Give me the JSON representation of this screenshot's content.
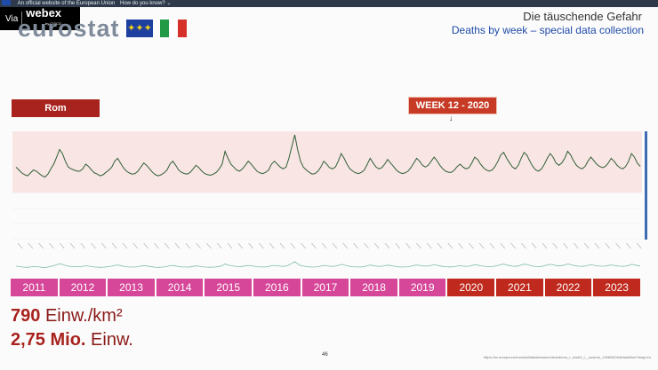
{
  "browser_bar": {
    "text": "An official website of the European Union",
    "link": "How do you know? ⌄"
  },
  "webex": {
    "via": "Via",
    "brand": "webex",
    "sub": "by CISCO"
  },
  "slide": {
    "logo": "eurostat",
    "title": "Die täuschende Gefahr",
    "subtitle": "Deaths by week – special data collection",
    "city_label": "Rom",
    "week_label": "WEEK 12 - 2020",
    "week_arrow": "↓",
    "years": [
      {
        "label": "2011",
        "color": "#d6479a"
      },
      {
        "label": "2012",
        "color": "#d6479a"
      },
      {
        "label": "2013",
        "color": "#d6479a"
      },
      {
        "label": "2014",
        "color": "#d6479a"
      },
      {
        "label": "2015",
        "color": "#d6479a"
      },
      {
        "label": "2016",
        "color": "#d6479a"
      },
      {
        "label": "2017",
        "color": "#d6479a"
      },
      {
        "label": "2018",
        "color": "#d6479a"
      },
      {
        "label": "2019",
        "color": "#d6479a"
      },
      {
        "label": "2020",
        "color": "#c0291d"
      },
      {
        "label": "2021",
        "color": "#c0291d"
      },
      {
        "label": "2022",
        "color": "#c0291d"
      },
      {
        "label": "2023",
        "color": "#c0291d"
      }
    ],
    "density_value": "790",
    "density_unit": "Einw./km²",
    "population_value": "2,75 Mio.",
    "population_unit": "Einw.",
    "page_number": "46",
    "source_url": "https://ec.europa.eu/eurostat/databrowser/view/demo_r_mwk3_t__custom_13080824/default/line?lang=en"
  },
  "colors": {
    "band": "#f9e5e3",
    "line": "#2f5f38",
    "accent_red": "#a8221e",
    "eu_blue": "#1d3fa0",
    "it_green": "#229a46",
    "it_white": "#ffffff",
    "it_red": "#d5312a"
  },
  "chart_data": {
    "type": "line",
    "title": "",
    "xlabel": "",
    "ylabel": "",
    "x_start_year": 2011,
    "x_end_year": 2023,
    "note": "Weekly deaths, Rome (values estimated; axis labels not legible)",
    "series": [
      {
        "values": [
          0.45,
          0.4,
          0.35,
          0.32,
          0.3,
          0.35,
          0.4,
          0.38,
          0.34,
          0.3,
          0.28,
          0.33,
          0.42,
          0.5,
          0.62,
          0.75,
          0.68,
          0.55,
          0.45,
          0.42,
          0.4,
          0.38,
          0.38,
          0.42,
          0.5,
          0.46,
          0.4,
          0.35,
          0.33,
          0.3,
          0.32,
          0.36,
          0.4,
          0.45,
          0.55,
          0.6,
          0.52,
          0.44,
          0.38,
          0.35,
          0.33,
          0.34,
          0.38,
          0.45,
          0.52,
          0.48,
          0.42,
          0.36,
          0.32,
          0.3,
          0.32,
          0.35,
          0.4,
          0.5,
          0.55,
          0.48,
          0.4,
          0.36,
          0.34,
          0.33,
          0.36,
          0.42,
          0.48,
          0.44,
          0.38,
          0.34,
          0.32,
          0.31,
          0.33,
          0.36,
          0.42,
          0.5,
          0.72,
          0.6,
          0.5,
          0.45,
          0.4,
          0.38,
          0.42,
          0.48,
          0.55,
          0.5,
          0.44,
          0.38,
          0.35,
          0.34,
          0.36,
          0.4,
          0.5,
          0.55,
          0.5,
          0.45,
          0.42,
          0.45,
          0.6,
          0.8,
          1.0,
          0.75,
          0.55,
          0.45,
          0.4,
          0.36,
          0.33,
          0.34,
          0.38,
          0.45,
          0.55,
          0.5,
          0.44,
          0.42,
          0.45,
          0.55,
          0.68,
          0.6,
          0.5,
          0.42,
          0.38,
          0.35,
          0.34,
          0.36,
          0.4,
          0.5,
          0.6,
          0.52,
          0.45,
          0.42,
          0.44,
          0.5,
          0.58,
          0.52,
          0.46,
          0.4,
          0.36,
          0.34,
          0.35,
          0.38,
          0.44,
          0.52,
          0.6,
          0.55,
          0.48,
          0.45,
          0.48,
          0.55,
          0.62,
          0.56,
          0.48,
          0.42,
          0.38,
          0.36,
          0.36,
          0.4,
          0.46,
          0.5,
          0.45,
          0.42,
          0.44,
          0.52,
          0.62,
          0.58,
          0.5,
          0.44,
          0.4,
          0.38,
          0.4,
          0.46,
          0.55,
          0.66,
          0.7,
          0.6,
          0.52,
          0.45,
          0.42,
          0.48,
          0.6,
          0.7,
          0.65,
          0.55,
          0.46,
          0.4,
          0.38,
          0.42,
          0.5,
          0.6,
          0.68,
          0.62,
          0.52,
          0.48,
          0.52,
          0.6,
          0.72,
          0.66,
          0.56,
          0.48,
          0.44,
          0.42,
          0.46,
          0.55,
          0.62,
          0.56,
          0.5,
          0.46,
          0.44,
          0.46,
          0.52,
          0.6,
          0.55,
          0.48,
          0.44,
          0.42,
          0.46,
          0.55,
          0.68,
          0.62,
          0.52,
          0.46
        ]
      }
    ]
  }
}
